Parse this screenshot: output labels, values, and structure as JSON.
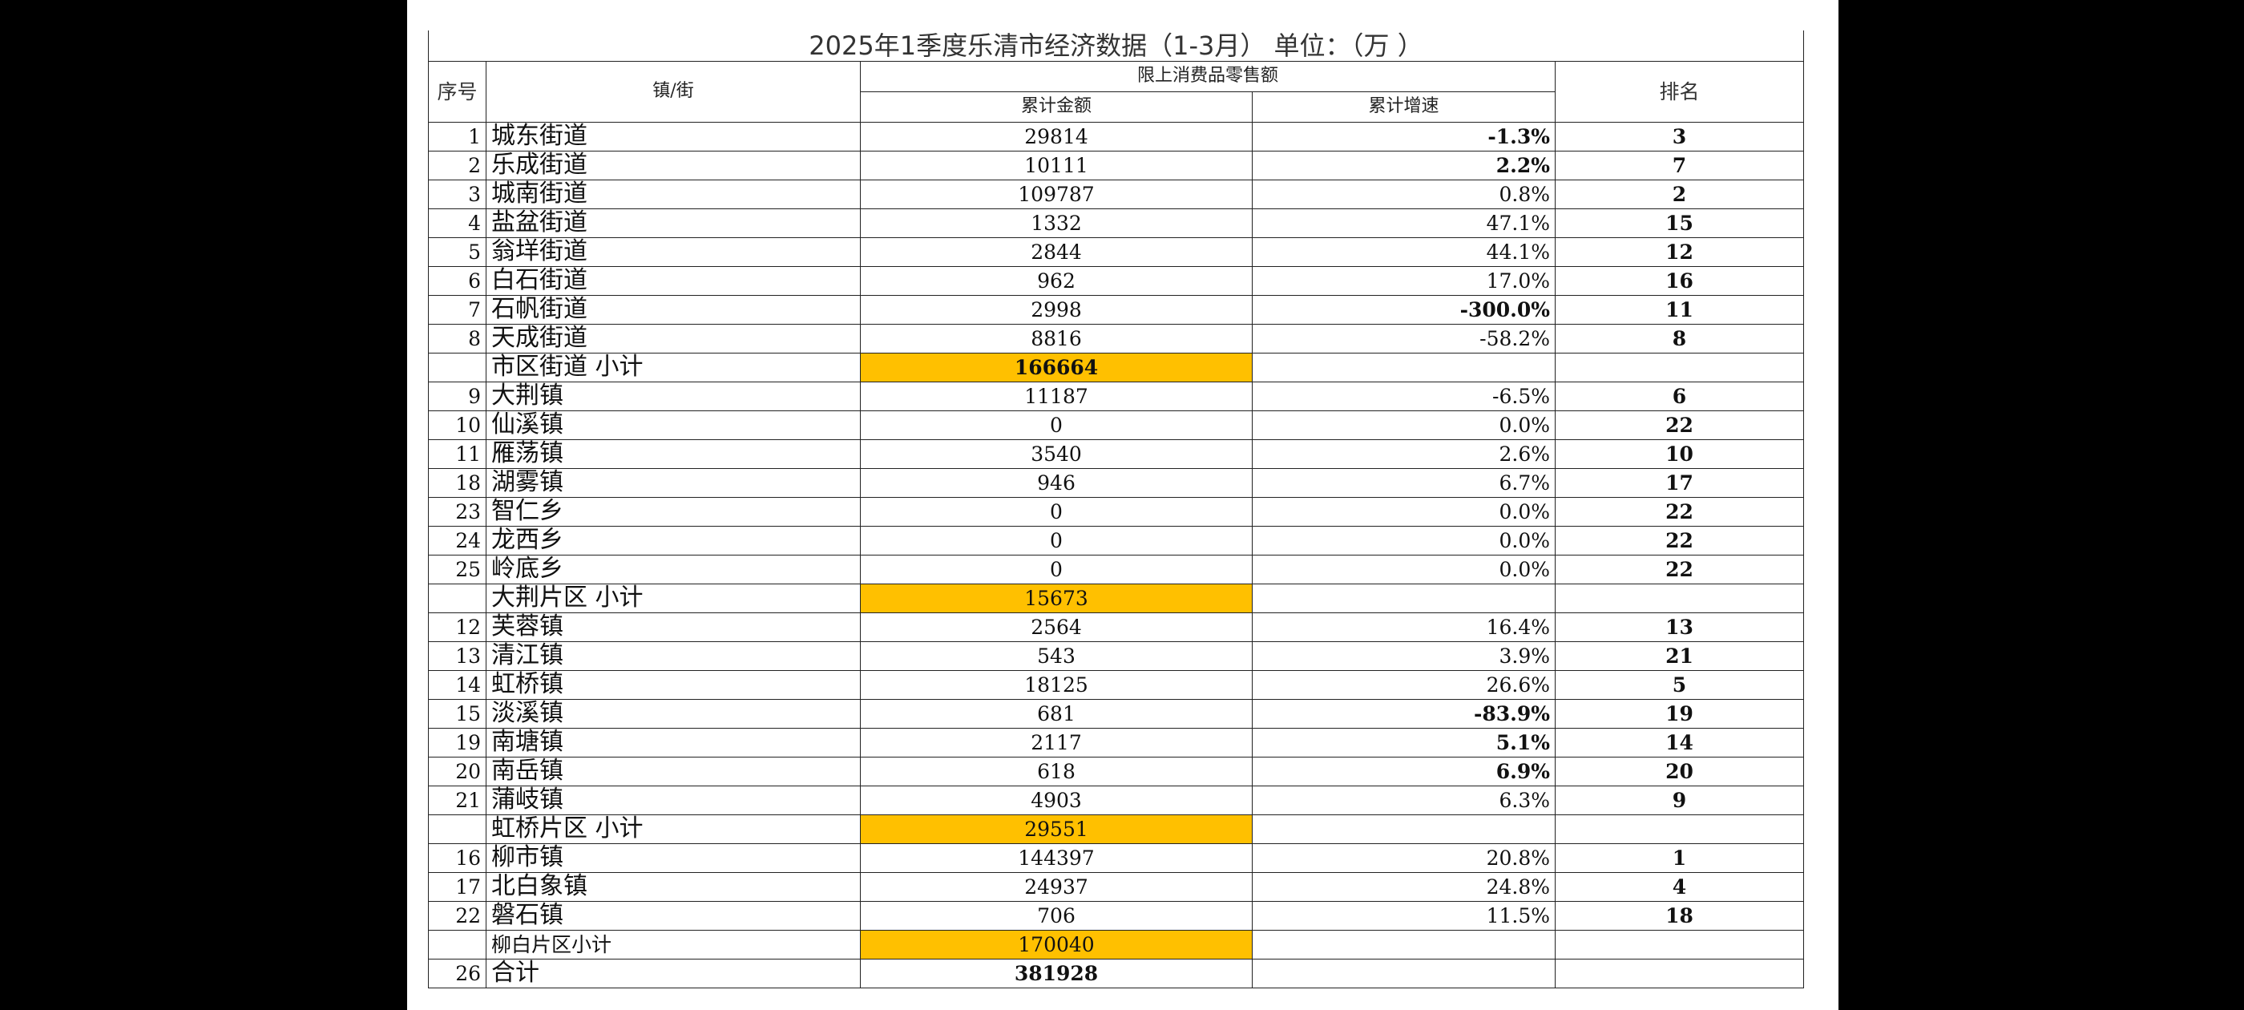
{
  "title": "2025年1季度乐清市经济数据（1-3月）      单位：（万   ）",
  "headers": {
    "seq": "序号",
    "town": "镇/街",
    "group": "限上消费品零售额",
    "amount": "累计金额",
    "rate": "累计增速",
    "rank": "排名"
  },
  "rows": [
    {
      "seq": "1",
      "name": "城东街道",
      "amount": "29814",
      "rate": "-1.3%",
      "rank": "3"
    },
    {
      "seq": "2",
      "name": "乐成街道",
      "amount": "10111",
      "rate": "2.2%",
      "rank": "7"
    },
    {
      "seq": "3",
      "name": "城南街道",
      "amount": "109787",
      "rate": "0.8%",
      "rank": "2"
    },
    {
      "seq": "4",
      "name": "盐盆街道",
      "amount": "1332",
      "rate": "47.1%",
      "rank": "15"
    },
    {
      "seq": "5",
      "name": "翁垟街道",
      "amount": "2844",
      "rate": "44.1%",
      "rank": "12"
    },
    {
      "seq": "6",
      "name": "白石街道",
      "amount": "962",
      "rate": "17.0%",
      "rank": "16"
    },
    {
      "seq": "7",
      "name": "石帆街道",
      "amount": "2998",
      "rate": "-300.0%",
      "rank": "11"
    },
    {
      "seq": "8",
      "name": "天成街道",
      "amount": "8816",
      "rate": "-58.2%",
      "rank": "8"
    },
    {
      "seq": "",
      "name": "市区街道    小计",
      "amount": "166664",
      "rate": "",
      "rank": ""
    },
    {
      "seq": "9",
      "name": "大荆镇",
      "amount": "11187",
      "rate": "-6.5%",
      "rank": "6"
    },
    {
      "seq": "10",
      "name": "仙溪镇",
      "amount": "0",
      "rate": "0.0%",
      "rank": "22"
    },
    {
      "seq": "11",
      "name": "雁荡镇",
      "amount": "3540",
      "rate": "2.6%",
      "rank": "10"
    },
    {
      "seq": "18",
      "name": "湖雾镇",
      "amount": "946",
      "rate": "6.7%",
      "rank": "17"
    },
    {
      "seq": "23",
      "name": "智仁乡",
      "amount": "0",
      "rate": "0.0%",
      "rank": "22"
    },
    {
      "seq": "24",
      "name": "龙西乡",
      "amount": "0",
      "rate": "0.0%",
      "rank": "22"
    },
    {
      "seq": "25",
      "name": "岭底乡",
      "amount": "0",
      "rate": "0.0%",
      "rank": "22"
    },
    {
      "seq": "",
      "name": "大荆片区   小计",
      "amount": "15673",
      "rate": "",
      "rank": ""
    },
    {
      "seq": "12",
      "name": "芙蓉镇",
      "amount": "2564",
      "rate": "16.4%",
      "rank": "13"
    },
    {
      "seq": "13",
      "name": "清江镇",
      "amount": "543",
      "rate": "3.9%",
      "rank": "21"
    },
    {
      "seq": "14",
      "name": "虹桥镇",
      "amount": "18125",
      "rate": "26.6%",
      "rank": "5"
    },
    {
      "seq": "15",
      "name": "淡溪镇",
      "amount": "681",
      "rate": "-83.9%",
      "rank": "19"
    },
    {
      "seq": "19",
      "name": "南塘镇",
      "amount": "2117",
      "rate": "5.1%",
      "rank": "14"
    },
    {
      "seq": "20",
      "name": "南岳镇",
      "amount": "618",
      "rate": "6.9%",
      "rank": "20"
    },
    {
      "seq": "21",
      "name": "蒲岐镇",
      "amount": "4903",
      "rate": "6.3%",
      "rank": "9"
    },
    {
      "seq": "",
      "name": "虹桥片区   小计",
      "amount": "29551",
      "rate": "",
      "rank": ""
    },
    {
      "seq": "16",
      "name": "柳市镇",
      "amount": "144397",
      "rate": "20.8%",
      "rank": "1"
    },
    {
      "seq": "17",
      "name": "北白象镇",
      "amount": "24937",
      "rate": "24.8%",
      "rank": "4"
    },
    {
      "seq": "22",
      "name": "磐石镇",
      "amount": "706",
      "rate": "11.5%",
      "rank": "18"
    },
    {
      "seq": "",
      "name": "柳白片区小计",
      "amount": "170040",
      "rate": "",
      "rank": ""
    },
    {
      "seq": "26",
      "name": "合计",
      "amount": "381928",
      "rate": "",
      "rank": ""
    }
  ],
  "styles": {
    "subtotal_fill": "#FFC000",
    "background": "#000000"
  }
}
